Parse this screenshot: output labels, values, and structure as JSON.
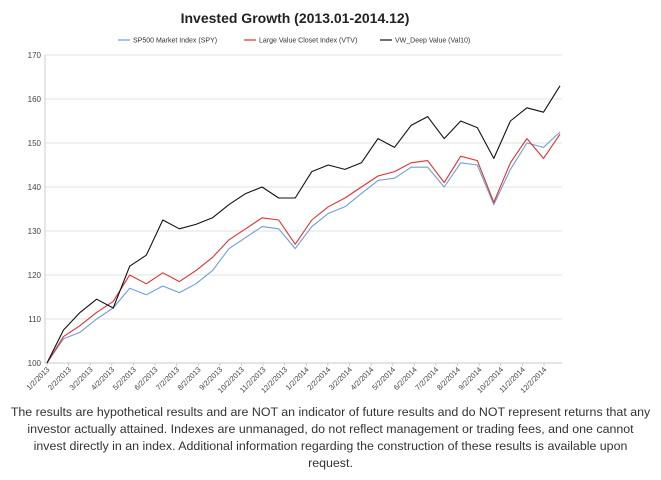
{
  "chart_data": {
    "type": "line",
    "title": "Invested Growth (2013.01-2014.12)",
    "xlabel": "",
    "ylabel": "",
    "ylim": [
      100,
      170
    ],
    "y_ticks": [
      100,
      110,
      120,
      130,
      140,
      150,
      160,
      170
    ],
    "x_tick_labels": [
      "1/2/2013",
      "2/2/2013",
      "3/2/2013",
      "4/2/2013",
      "5/2/2013",
      "6/2/2013",
      "7/2/2013",
      "8/2/2013",
      "9/2/2013",
      "10/2/2013",
      "11/2/2013",
      "12/2/2013",
      "1/2/2014",
      "2/2/2014",
      "3/2/2014",
      "4/2/2014",
      "5/2/2014",
      "6/2/2014",
      "7/2/2014",
      "8/2/2014",
      "9/2/2014",
      "10/2/2014",
      "11/2/2014",
      "12/2/2014"
    ],
    "grid": "horizontal",
    "legend_position": "top",
    "series": [
      {
        "name": "SP500 Market Index (SPY)",
        "color": "#6a9fd8",
        "values": [
          100,
          105.5,
          107,
          110,
          112.5,
          117,
          115.5,
          117.5,
          116,
          118,
          121,
          126,
          128.5,
          131,
          130.5,
          126,
          131,
          134,
          135.5,
          138.5,
          141.5,
          142,
          144.5,
          144.5,
          140,
          145.5,
          145,
          136,
          144,
          150,
          149,
          152.5
        ]
      },
      {
        "name": "Large Value Closet Index (VTV)",
        "color": "#e03030",
        "values": [
          100,
          106,
          108.5,
          111.5,
          114,
          120,
          118,
          120.5,
          118.5,
          121,
          124,
          128,
          130.5,
          133,
          132.5,
          127,
          132.5,
          135.5,
          137.5,
          140,
          142.5,
          143.5,
          145.5,
          146,
          141,
          147,
          146,
          136.5,
          145.5,
          151,
          146.5,
          152
        ]
      },
      {
        "name": "VW_Deep Value (Val10)",
        "color": "#111111",
        "values": [
          100,
          107.5,
          111.5,
          114.5,
          112.5,
          122,
          124.5,
          132.5,
          130.5,
          131.5,
          133,
          136,
          138.5,
          140,
          137.5,
          137.5,
          143.5,
          145,
          144,
          145.5,
          151,
          149,
          154,
          156,
          151,
          155,
          153.5,
          146.5,
          155,
          158,
          157,
          163
        ]
      }
    ]
  },
  "footnote": "The results are hypothetical results and are NOT an indicator of future results and do NOT represent returns that any investor actually attained. Indexes are unmanaged, do not reflect management or trading fees, and one cannot invest directly in an index. Additional information regarding the construction of these results is available upon request."
}
